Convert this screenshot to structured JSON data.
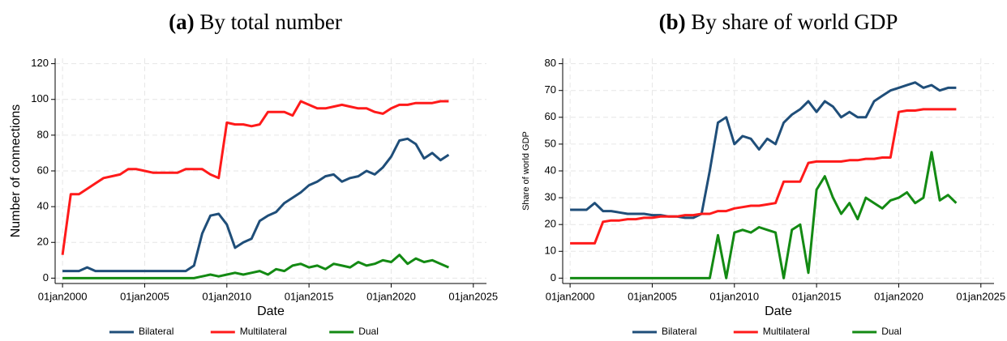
{
  "chart_data": [
    {
      "type": "line",
      "panel": "(a)",
      "title": "By total number",
      "x_label": "Date",
      "y_label": "Number of connections",
      "x": [
        2000,
        2000.5,
        2001,
        2001.5,
        2002,
        2002.5,
        2003,
        2003.5,
        2004,
        2004.5,
        2005,
        2005.5,
        2006,
        2006.5,
        2007,
        2007.5,
        2008,
        2008.5,
        2009,
        2009.5,
        2010,
        2010.5,
        2011,
        2011.5,
        2012,
        2012.5,
        2013,
        2013.5,
        2014,
        2014.5,
        2015,
        2015.5,
        2016,
        2016.5,
        2017,
        2017.5,
        2018,
        2018.5,
        2019,
        2019.5,
        2020,
        2020.5,
        2021,
        2021.5,
        2022,
        2022.5,
        2023,
        2023.5
      ],
      "series": [
        {
          "name": "Bilateral",
          "color": "#1f4e79",
          "values": [
            4,
            4,
            4,
            6,
            4,
            4,
            4,
            4,
            4,
            4,
            4,
            4,
            4,
            4,
            4,
            4,
            7,
            25,
            35,
            36,
            30,
            17,
            20,
            22,
            32,
            35,
            37,
            42,
            45,
            48,
            52,
            54,
            57,
            58,
            54,
            56,
            57,
            60,
            58,
            62,
            68,
            77,
            78,
            75,
            67,
            70,
            66,
            69
          ]
        },
        {
          "name": "Multilateral",
          "color": "#ff1a1a",
          "values": [
            13,
            47,
            47,
            50,
            53,
            56,
            57,
            58,
            61,
            61,
            60,
            59,
            59,
            59,
            59,
            61,
            61,
            61,
            58,
            56,
            87,
            86,
            86,
            85,
            86,
            93,
            93,
            93,
            91,
            99,
            97,
            95,
            95,
            96,
            97,
            96,
            95,
            95,
            93,
            92,
            95,
            97,
            97,
            98,
            98,
            98,
            99,
            99
          ]
        },
        {
          "name": "Dual",
          "color": "#138a13",
          "values": [
            0,
            0,
            0,
            0,
            0,
            0,
            0,
            0,
            0,
            0,
            0,
            0,
            0,
            0,
            0,
            0,
            0,
            1,
            2,
            1,
            2,
            3,
            2,
            3,
            4,
            2,
            5,
            4,
            7,
            8,
            6,
            7,
            5,
            8,
            7,
            6,
            9,
            7,
            8,
            10,
            9,
            13,
            8,
            11,
            9,
            10,
            8,
            6
          ]
        }
      ],
      "xlim": [
        1999.55,
        2025.8
      ],
      "xticks": [
        {
          "value": 2000,
          "label": "01jan2000"
        },
        {
          "value": 2005,
          "label": "01jan2005"
        },
        {
          "value": 2010,
          "label": "01jan2010"
        },
        {
          "value": 2015,
          "label": "01jan2015"
        },
        {
          "value": 2020,
          "label": "01jan2020"
        },
        {
          "value": 2025,
          "label": "01jan2025"
        }
      ],
      "ylim": [
        -3,
        123
      ],
      "yticks": [
        0,
        20,
        40,
        60,
        80,
        100,
        120
      ],
      "grid": true,
      "legend": "bottom"
    },
    {
      "type": "line",
      "panel": "(b)",
      "title": "By share of world GDP",
      "x_label": "Date",
      "y_label": "Share of world GDP",
      "x": [
        2000,
        2000.5,
        2001,
        2001.5,
        2002,
        2002.5,
        2003,
        2003.5,
        2004,
        2004.5,
        2005,
        2005.5,
        2006,
        2006.5,
        2007,
        2007.5,
        2008,
        2008.5,
        2009,
        2009.5,
        2010,
        2010.5,
        2011,
        2011.5,
        2012,
        2012.5,
        2013,
        2013.5,
        2014,
        2014.5,
        2015,
        2015.5,
        2016,
        2016.5,
        2017,
        2017.5,
        2018,
        2018.5,
        2019,
        2019.5,
        2020,
        2020.5,
        2021,
        2021.5,
        2022,
        2022.5,
        2023,
        2023.5
      ],
      "series": [
        {
          "name": "Bilateral",
          "color": "#1f4e79",
          "values": [
            25.5,
            25.5,
            25.5,
            28,
            25,
            25,
            24.5,
            24,
            24,
            24,
            23.5,
            23.5,
            23,
            23,
            22.5,
            22.5,
            24,
            40,
            58,
            60,
            50,
            53,
            52,
            48,
            52,
            50,
            58,
            61,
            63,
            66,
            62,
            66,
            64,
            60,
            62,
            60,
            60,
            66,
            68,
            70,
            71,
            72,
            73,
            71,
            72,
            70,
            71,
            71
          ]
        },
        {
          "name": "Multilateral",
          "color": "#ff1a1a",
          "values": [
            13,
            13,
            13,
            13,
            21,
            21.5,
            21.5,
            22,
            22,
            22.5,
            22.5,
            23,
            23,
            23,
            23.5,
            23.5,
            24,
            24,
            25,
            25,
            26,
            26.5,
            27,
            27,
            27.5,
            28,
            36,
            36,
            36,
            43,
            43.5,
            43.5,
            43.5,
            43.5,
            44,
            44,
            44.5,
            44.5,
            45,
            45,
            62,
            62.5,
            62.5,
            63,
            63,
            63,
            63,
            63
          ]
        },
        {
          "name": "Dual",
          "color": "#138a13",
          "values": [
            0,
            0,
            0,
            0,
            0,
            0,
            0,
            0,
            0,
            0,
            0,
            0,
            0,
            0,
            0,
            0,
            0,
            0,
            16,
            0,
            17,
            18,
            17,
            19,
            18,
            17,
            0,
            18,
            20,
            2,
            33,
            38,
            30,
            24,
            28,
            22,
            30,
            28,
            26,
            29,
            30,
            32,
            28,
            30,
            47,
            29,
            31,
            28
          ]
        }
      ],
      "xlim": [
        1999.55,
        2025.8
      ],
      "xticks": [
        {
          "value": 2000,
          "label": "01jan2000"
        },
        {
          "value": 2005,
          "label": "01jan2005"
        },
        {
          "value": 2010,
          "label": "01jan2010"
        },
        {
          "value": 2015,
          "label": "01jan2015"
        },
        {
          "value": 2020,
          "label": "01jan2020"
        },
        {
          "value": 2025,
          "label": "01jan2025"
        }
      ],
      "ylim": [
        -2,
        82
      ],
      "yticks": [
        0,
        10,
        20,
        30,
        40,
        50,
        60,
        70,
        80
      ],
      "grid": true,
      "legend": "bottom"
    }
  ]
}
